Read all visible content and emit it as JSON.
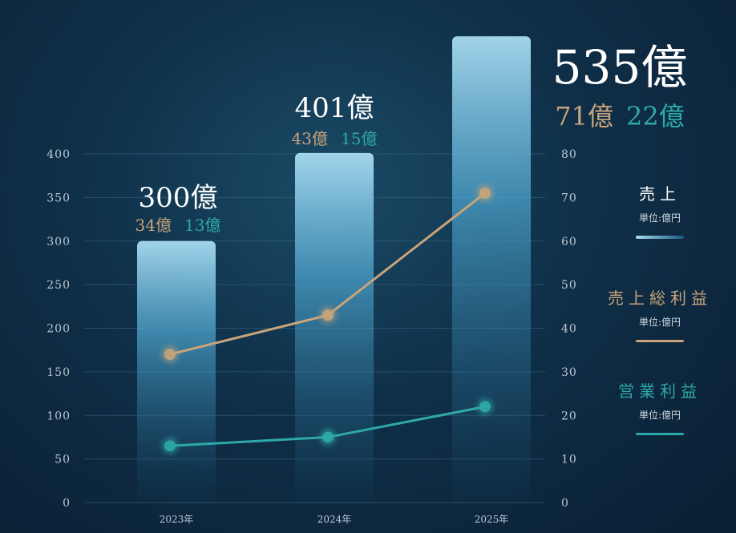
{
  "chart_data": {
    "type": "bar",
    "categories": [
      "2023年",
      "2024年",
      "2025年"
    ],
    "bar_series": {
      "name": "売上",
      "unit": "単位:億円",
      "values": [
        300,
        401,
        535
      ]
    },
    "line_series": [
      {
        "name": "売上総利益",
        "unit": "単位:億円",
        "values": [
          34,
          43,
          71
        ],
        "color": "#c8a47a"
      },
      {
        "name": "営業利益",
        "unit": "単位:億円",
        "values": [
          13,
          15,
          22
        ],
        "color": "#2ea9a9"
      }
    ],
    "bar_labels": [
      {
        "sales": "300億",
        "gross": "34億",
        "op": "13億"
      },
      {
        "sales": "401億",
        "gross": "43億",
        "op": "15億"
      },
      {
        "sales": "535億",
        "gross": "71億",
        "op": "22億"
      }
    ],
    "left_axis": {
      "ticks": [
        "0",
        "50",
        "100",
        "150",
        "200",
        "250",
        "300",
        "350",
        "400"
      ],
      "range": [
        0,
        400
      ]
    },
    "right_axis": {
      "ticks": [
        "0",
        "10",
        "20",
        "30",
        "40",
        "50",
        "60",
        "70",
        "80"
      ],
      "range": [
        0,
        80
      ]
    },
    "grid": true,
    "legend_position": "right",
    "colors": {
      "bar": "#7ec4e4",
      "gross": "#c8a47a",
      "operating": "#2ea9a9",
      "axis_text": "#b9c7d2"
    }
  }
}
